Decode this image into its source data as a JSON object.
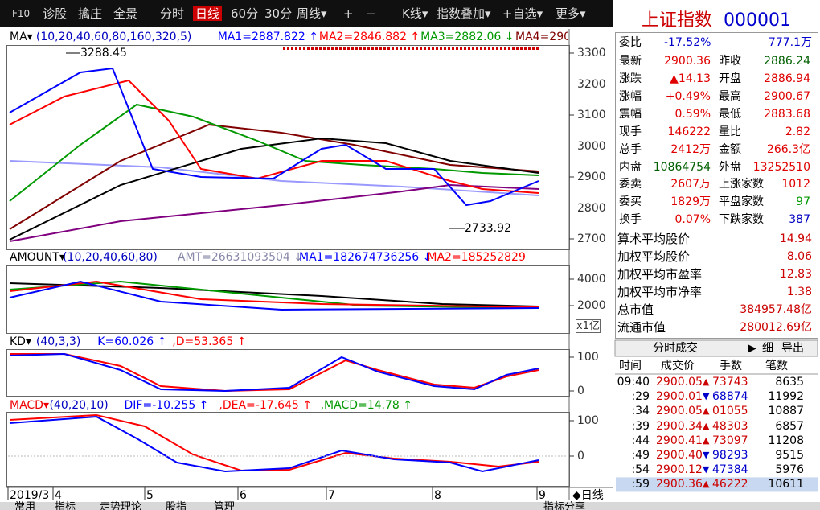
{
  "toolbar": [
    "F10",
    "诊股",
    "擒庄",
    "全景",
    "分时",
    "日线",
    "60分",
    "30分",
    "周线▾",
    "+",
    "−",
    "K线▾",
    "指数叠加▾",
    "+自选▾",
    "更多▾"
  ],
  "active_tab": "日线",
  "main": {
    "name": "MA▾",
    "params": "(10,20,40,60,80,160,320,5)",
    "indicators": [
      {
        "text": "MA1=2887.822 ↑",
        "color": "#0000ff"
      },
      {
        "text": "MA2=2846.882 ↑",
        "color": "#ff0000"
      },
      {
        "text": "MA3=2882.06 ↓",
        "color": "#009900"
      },
      {
        "text": "MA4=290",
        "color": "#800000"
      }
    ],
    "ticks": [
      3300,
      3200,
      3100,
      3000,
      2900,
      2800,
      2700
    ],
    "high_label": "3288.45",
    "low_label": "2733.92"
  },
  "volume": {
    "name": "AMOUNT▾",
    "params": "(10,20,40,60,80)",
    "indicators": [
      {
        "text": "AMT=26631093504 ↓",
        "color": "#8888aa"
      },
      {
        "text": "MA1=182674736256 ↓",
        "color": "#0000ff"
      },
      {
        "text": "MA2=185252829",
        "color": "#ff0000"
      }
    ],
    "ticks": [
      4000,
      2000
    ],
    "unit": "x1亿"
  },
  "kd": {
    "name": "KD▾",
    "params": "(40,3,3)",
    "indicators": [
      {
        "text": "K=60.026 ↑",
        "color": "#0000ff"
      },
      {
        "text": ",D=53.365 ↑",
        "color": "#ff0000"
      }
    ],
    "ticks": [
      100,
      0
    ]
  },
  "macd": {
    "name": "MACD▾",
    "params": "(40,20,10)",
    "indicators": [
      {
        "text": "DIF=-10.255 ↑",
        "color": "#0000ff"
      },
      {
        "text": ",DEA=-17.645 ↑",
        "color": "#ff0000"
      },
      {
        "text": ",MACD=14.78 ↑",
        "color": "#009900"
      }
    ],
    "ticks": [
      100,
      0
    ]
  },
  "dates": [
    "2019/3",
    "4",
    "5",
    "6",
    "7",
    "8",
    "9"
  ],
  "period": "◆日线",
  "bottom_tabs": [
    "常用",
    "指标",
    "走势理论",
    "股指",
    "管理",
    "指标分享"
  ],
  "quote": {
    "name": "上证指数",
    "code": "000001",
    "ratio": {
      "label": "委比",
      "value": "-17.52%",
      "extra": "777.1万"
    },
    "rows": [
      [
        {
          "label": "最新",
          "value": "2900.36",
          "color": "#e00000"
        },
        {
          "label": "昨收",
          "value": "2886.24",
          "color": "#006000"
        }
      ],
      [
        {
          "label": "涨跌",
          "value": "▲14.13",
          "color": "#e00000"
        },
        {
          "label": "开盘",
          "value": "2886.94",
          "color": "#e00000"
        }
      ],
      [
        {
          "label": "涨幅",
          "value": "+0.49%",
          "color": "#e00000"
        },
        {
          "label": "最高",
          "value": "2900.67",
          "color": "#e00000"
        }
      ],
      [
        {
          "label": "震幅",
          "value": "0.59%",
          "color": "#e00000"
        },
        {
          "label": "最低",
          "value": "2883.68",
          "color": "#e00000"
        }
      ],
      [
        {
          "label": "现手",
          "value": "146222",
          "color": "#e00000"
        },
        {
          "label": "量比",
          "value": "2.82",
          "color": "#e00000"
        }
      ],
      [
        {
          "label": "总手",
          "value": "2412万",
          "color": "#e00000"
        },
        {
          "label": "金额",
          "value": "266.3亿",
          "color": "#e00000"
        }
      ],
      [
        {
          "label": "内盘",
          "value": "10864754",
          "color": "#006000"
        },
        {
          "label": "外盘",
          "value": "13252510",
          "color": "#e00000"
        }
      ]
    ],
    "rows2": [
      [
        {
          "label": "委卖",
          "value": "2607万",
          "color": "#e00000"
        },
        {
          "label": "上涨家数",
          "value": "1012",
          "color": "#e00000"
        }
      ],
      [
        {
          "label": "委买",
          "value": "1829万",
          "color": "#e00000"
        },
        {
          "label": "平盘家数",
          "value": "97",
          "color": "#009900"
        }
      ],
      [
        {
          "label": "换手",
          "value": "0.07%",
          "color": "#e00000"
        },
        {
          "label": "下跌家数",
          "value": "387",
          "color": "#0000c0"
        }
      ]
    ],
    "stats": [
      {
        "label": "算术平均股价",
        "value": "14.94"
      },
      {
        "label": "加权平均股价",
        "value": "8.06"
      },
      {
        "label": "加权平均市盈率",
        "value": "12.83"
      },
      {
        "label": "加权平均市净率",
        "value": "1.38"
      },
      {
        "label": "总市值",
        "value": "384957.48亿"
      },
      {
        "label": "流通市值",
        "value": "280012.69亿"
      }
    ]
  },
  "trades": {
    "title": "分时成交",
    "buttons": [
      "▶",
      "细",
      "导出"
    ],
    "columns": [
      "时间",
      "成交价",
      "手数",
      "笔数"
    ],
    "rows": [
      {
        "time": "09:40",
        "price": "2900.05",
        "dir": "▲",
        "volume": "73743",
        "count": "8635"
      },
      {
        "time": ":29",
        "price": "2900.01",
        "dir": "▼",
        "volume": "68874",
        "count": "11992"
      },
      {
        "time": ":34",
        "price": "2900.05",
        "dir": "▲",
        "volume": "01055",
        "count": "10887"
      },
      {
        "time": ":39",
        "price": "2900.34",
        "dir": "▲",
        "volume": "48303",
        "count": "6857"
      },
      {
        "time": ":44",
        "price": "2900.41",
        "dir": "▲",
        "volume": "73097",
        "count": "11208"
      },
      {
        "time": ":49",
        "price": "2900.40",
        "dir": "▼",
        "volume": "98293",
        "count": "9515"
      },
      {
        "time": ":54",
        "price": "2900.12",
        "dir": "▼",
        "volume": "47384",
        "count": "5976"
      },
      {
        "time": ":59",
        "price": "2900.36",
        "dir": "▲",
        "volume": "46222",
        "count": "10611"
      }
    ]
  }
}
